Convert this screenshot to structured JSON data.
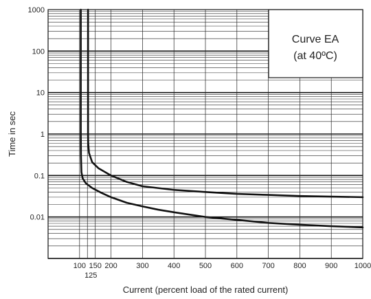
{
  "chart_data": {
    "type": "line",
    "title": "",
    "xlabel": "Current (percent load of the rated current)",
    "ylabel": "Time in sec",
    "x_scale": "linear",
    "y_scale": "log",
    "xlim": [
      0,
      1000
    ],
    "ylim": [
      0.001,
      1000
    ],
    "x_ticks": [
      {
        "value": 100,
        "label": "100"
      },
      {
        "value": 125,
        "label": "125"
      },
      {
        "value": 150,
        "label": "150"
      },
      {
        "value": 200,
        "label": "200"
      },
      {
        "value": 300,
        "label": "300"
      },
      {
        "value": 400,
        "label": "400"
      },
      {
        "value": 500,
        "label": "500"
      },
      {
        "value": 600,
        "label": "600"
      },
      {
        "value": 700,
        "label": "700"
      },
      {
        "value": 800,
        "label": "800"
      },
      {
        "value": 900,
        "label": "900"
      },
      {
        "value": 1000,
        "label": "1000"
      }
    ],
    "y_ticks": [
      {
        "value": 1000,
        "label": "1000"
      },
      {
        "value": 100,
        "label": "100"
      },
      {
        "value": 10,
        "label": "10"
      },
      {
        "value": 1,
        "label": "1"
      },
      {
        "value": 0.1,
        "label": "0.1"
      },
      {
        "value": 0.01,
        "label": "0.01"
      }
    ],
    "grid": true,
    "annotation": {
      "line1": "Curve EA",
      "line2": "(at 40ºC)",
      "placement": "top-right"
    },
    "series": [
      {
        "points": [
          [
            104,
            1000
          ],
          [
            104,
            5
          ],
          [
            104,
            1
          ],
          [
            104.5,
            0.3
          ],
          [
            106,
            0.12
          ],
          [
            110,
            0.085
          ],
          [
            120,
            0.065
          ],
          [
            140,
            0.05
          ],
          [
            170,
            0.038
          ],
          [
            200,
            0.03
          ],
          [
            250,
            0.022
          ],
          [
            300,
            0.018
          ],
          [
            350,
            0.015
          ],
          [
            400,
            0.013
          ],
          [
            500,
            0.01
          ],
          [
            600,
            0.0085
          ],
          [
            700,
            0.0072
          ],
          [
            800,
            0.0065
          ],
          [
            900,
            0.006
          ],
          [
            1000,
            0.0056
          ]
        ]
      },
      {
        "points": [
          [
            127,
            1000
          ],
          [
            127,
            5
          ],
          [
            127,
            1
          ],
          [
            127.5,
            0.6
          ],
          [
            130,
            0.35
          ],
          [
            140,
            0.21
          ],
          [
            160,
            0.15
          ],
          [
            200,
            0.1
          ],
          [
            250,
            0.07
          ],
          [
            300,
            0.055
          ],
          [
            400,
            0.045
          ],
          [
            500,
            0.04
          ],
          [
            600,
            0.036
          ],
          [
            700,
            0.034
          ],
          [
            800,
            0.032
          ],
          [
            900,
            0.031
          ],
          [
            1000,
            0.03
          ]
        ]
      }
    ]
  }
}
